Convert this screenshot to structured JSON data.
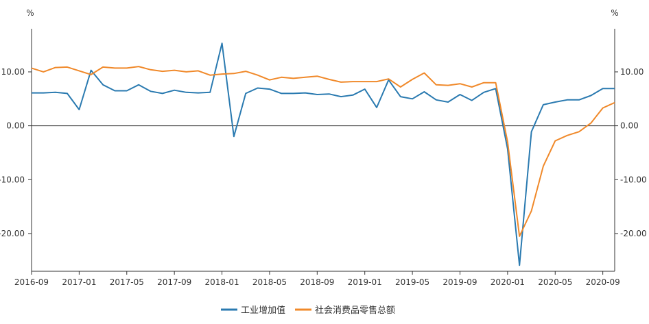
{
  "chart_data": {
    "type": "line",
    "left_unit": "%",
    "right_unit": "%",
    "ylim": [
      -27,
      18
    ],
    "yticks": [
      10,
      0,
      -10,
      -20
    ],
    "ytick_labels": [
      "10.00",
      "0.00",
      "-10.00",
      "-20.00"
    ],
    "x_tick_labels": [
      "2016-09",
      "2017-01",
      "2017-05",
      "2017-09",
      "2018-01",
      "2018-05",
      "2018-09",
      "2019-01",
      "2019-05",
      "2019-09",
      "2020-01",
      "2020-05",
      "2020-09"
    ],
    "x": [
      "2016-09",
      "2016-10",
      "2016-11",
      "2016-12",
      "2017-01",
      "2017-02",
      "2017-03",
      "2017-04",
      "2017-05",
      "2017-06",
      "2017-07",
      "2017-08",
      "2017-09",
      "2017-10",
      "2017-11",
      "2017-12",
      "2018-01",
      "2018-02",
      "2018-03",
      "2018-04",
      "2018-05",
      "2018-06",
      "2018-07",
      "2018-08",
      "2018-09",
      "2018-10",
      "2018-11",
      "2018-12",
      "2019-01",
      "2019-02",
      "2019-03",
      "2019-04",
      "2019-05",
      "2019-06",
      "2019-07",
      "2019-08",
      "2019-09",
      "2019-10",
      "2019-11",
      "2019-12",
      "2020-01",
      "2020-02",
      "2020-03",
      "2020-04",
      "2020-05",
      "2020-06",
      "2020-07",
      "2020-08",
      "2020-09",
      "2020-10"
    ],
    "series": [
      {
        "name": "工业增加值",
        "color": "#2a7ab0",
        "values": [
          6.1,
          6.1,
          6.2,
          6.0,
          3.0,
          10.3,
          7.6,
          6.5,
          6.5,
          7.6,
          6.4,
          6.0,
          6.6,
          6.2,
          6.1,
          6.2,
          15.3,
          -2.0,
          6.0,
          7.0,
          6.8,
          6.0,
          6.0,
          6.1,
          5.8,
          5.9,
          5.4,
          5.7,
          6.8,
          3.4,
          8.5,
          5.4,
          5.0,
          6.3,
          4.8,
          4.4,
          5.8,
          4.7,
          6.2,
          6.9,
          -4.3,
          -25.9,
          -1.1,
          3.9,
          4.4,
          4.8,
          4.8,
          5.6,
          6.9,
          6.9
        ]
      },
      {
        "name": "社会消费品零售总额",
        "color": "#f0892a",
        "values": [
          10.7,
          10.0,
          10.8,
          10.9,
          10.2,
          9.5,
          10.9,
          10.7,
          10.7,
          11.0,
          10.4,
          10.1,
          10.3,
          10.0,
          10.2,
          9.4,
          9.6,
          9.7,
          10.1,
          9.4,
          8.5,
          9.0,
          8.8,
          9.0,
          9.2,
          8.6,
          8.1,
          8.2,
          8.2,
          8.2,
          8.7,
          7.2,
          8.6,
          9.8,
          7.6,
          7.5,
          7.8,
          7.2,
          8.0,
          8.0,
          -3.0,
          -20.5,
          -15.8,
          -7.5,
          -2.8,
          -1.8,
          -1.1,
          0.5,
          3.3,
          4.3
        ]
      }
    ]
  }
}
